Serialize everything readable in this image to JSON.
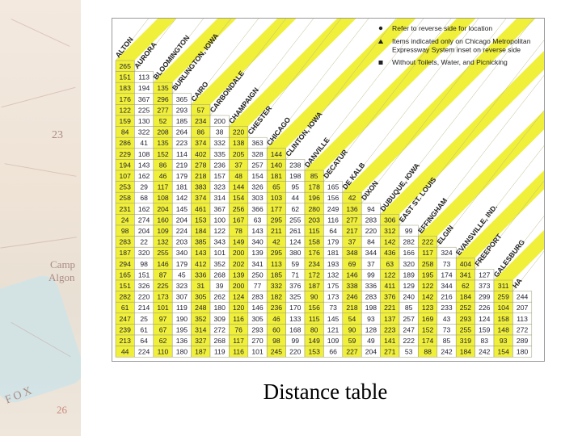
{
  "background_map": {
    "labels": [
      "23",
      "Camp",
      "Algon",
      "FOX",
      "26"
    ]
  },
  "legend": [
    {
      "icon": "dot-icon",
      "text": "Refer to reverse side for location"
    },
    {
      "icon": "triangle-icon",
      "text": "Items indicated only on Chicago Metropolitan Expressway System inset on reverse side"
    },
    {
      "icon": "square-icon",
      "text": "Without Toilets, Water, and Picnicking"
    }
  ],
  "cities": [
    "ALTON",
    "AURORA",
    "BLOOMINGTON",
    "BURLINGTON, IOWA",
    "CAIRO",
    "CARBONDALE",
    "CHAMPAIGN",
    "CHESTER",
    "CHICAGO",
    "CLINTON, IOWA",
    "DANVILLE",
    "DECATUR",
    "DE KALB",
    "DIXON",
    "DUBUQUE, IOWA",
    "EAST ST. LOUIS",
    "EFFINGHAM",
    "ELGIN",
    "EVANSVILLE, IND.",
    "FREEPORT",
    "GALESBURG",
    "HA"
  ],
  "distance_rows": [
    [
      "265"
    ],
    [
      "151",
      "113"
    ],
    [
      "183",
      "194",
      "135"
    ],
    [
      "176",
      "367",
      "296",
      "365"
    ],
    [
      "122",
      "225",
      "277",
      "293",
      "57"
    ],
    [
      "159",
      "130",
      "52",
      "185",
      "234",
      "200"
    ],
    [
      "84",
      "322",
      "208",
      "264",
      "86",
      "38",
      "220"
    ],
    [
      "286",
      "41",
      "135",
      "223",
      "374",
      "332",
      "138",
      "363"
    ],
    [
      "229",
      "108",
      "152",
      "114",
      "402",
      "335",
      "205",
      "328",
      "144"
    ],
    [
      "194",
      "143",
      "86",
      "219",
      "278",
      "236",
      "37",
      "257",
      "140",
      "238"
    ],
    [
      "107",
      "162",
      "46",
      "179",
      "218",
      "157",
      "48",
      "154",
      "181",
      "198",
      "85"
    ],
    [
      "253",
      "29",
      "117",
      "181",
      "383",
      "323",
      "144",
      "326",
      "65",
      "95",
      "178",
      "165"
    ],
    [
      "258",
      "68",
      "108",
      "142",
      "374",
      "314",
      "154",
      "303",
      "103",
      "44",
      "196",
      "156",
      "42"
    ],
    [
      "231",
      "162",
      "204",
      "145",
      "461",
      "367",
      "256",
      "366",
      "177",
      "62",
      "280",
      "249",
      "136",
      "94"
    ],
    [
      "24",
      "274",
      "160",
      "204",
      "153",
      "100",
      "167",
      "63",
      "295",
      "255",
      "203",
      "116",
      "277",
      "283",
      "306"
    ],
    [
      "98",
      "204",
      "109",
      "224",
      "184",
      "122",
      "78",
      "143",
      "211",
      "261",
      "115",
      "64",
      "217",
      "220",
      "312",
      "99"
    ],
    [
      "283",
      "22",
      "132",
      "203",
      "385",
      "343",
      "149",
      "340",
      "42",
      "124",
      "158",
      "179",
      "37",
      "84",
      "142",
      "282",
      "222"
    ],
    [
      "187",
      "320",
      "255",
      "340",
      "143",
      "101",
      "200",
      "139",
      "295",
      "380",
      "176",
      "181",
      "348",
      "344",
      "436",
      "166",
      "117",
      "324"
    ],
    [
      "294",
      "98",
      "146",
      "179",
      "412",
      "352",
      "202",
      "341",
      "113",
      "59",
      "234",
      "193",
      "69",
      "37",
      "63",
      "320",
      "258",
      "73",
      "404"
    ],
    [
      "165",
      "151",
      "87",
      "45",
      "336",
      "268",
      "139",
      "250",
      "185",
      "71",
      "172",
      "132",
      "146",
      "99",
      "122",
      "189",
      "195",
      "174",
      "341",
      "127"
    ],
    [
      "151",
      "326",
      "225",
      "323",
      "31",
      "39",
      "200",
      "77",
      "332",
      "376",
      "187",
      "175",
      "338",
      "336",
      "411",
      "129",
      "122",
      "344",
      "62",
      "373",
      "311"
    ],
    [
      "282",
      "220",
      "173",
      "307",
      "305",
      "262",
      "124",
      "283",
      "182",
      "325",
      "90",
      "173",
      "246",
      "283",
      "376",
      "240",
      "142",
      "216",
      "184",
      "299",
      "259",
      "244"
    ],
    [
      "61",
      "214",
      "101",
      "119",
      "248",
      "180",
      "120",
      "146",
      "236",
      "170",
      "156",
      "73",
      "218",
      "198",
      "221",
      "85",
      "123",
      "233",
      "252",
      "226",
      "104",
      "207"
    ],
    [
      "247",
      "25",
      "97",
      "190",
      "352",
      "309",
      "116",
      "305",
      "46",
      "133",
      "115",
      "145",
      "54",
      "93",
      "137",
      "257",
      "169",
      "43",
      "293",
      "124",
      "158",
      "113"
    ],
    [
      "239",
      "61",
      "67",
      "195",
      "314",
      "272",
      "76",
      "293",
      "60",
      "168",
      "80",
      "121",
      "90",
      "128",
      "223",
      "247",
      "152",
      "73",
      "255",
      "159",
      "148",
      "272"
    ],
    [
      "213",
      "64",
      "62",
      "136",
      "327",
      "268",
      "117",
      "270",
      "98",
      "99",
      "149",
      "109",
      "59",
      "49",
      "141",
      "222",
      "174",
      "85",
      "319",
      "83",
      "93",
      "289"
    ],
    [
      "44",
      "224",
      "110",
      "180",
      "187",
      "119",
      "116",
      "101",
      "245",
      "220",
      "153",
      "66",
      "227",
      "204",
      "271",
      "53",
      "88",
      "242",
      "184",
      "242",
      "154",
      "180"
    ]
  ],
  "caption": "Distance table"
}
